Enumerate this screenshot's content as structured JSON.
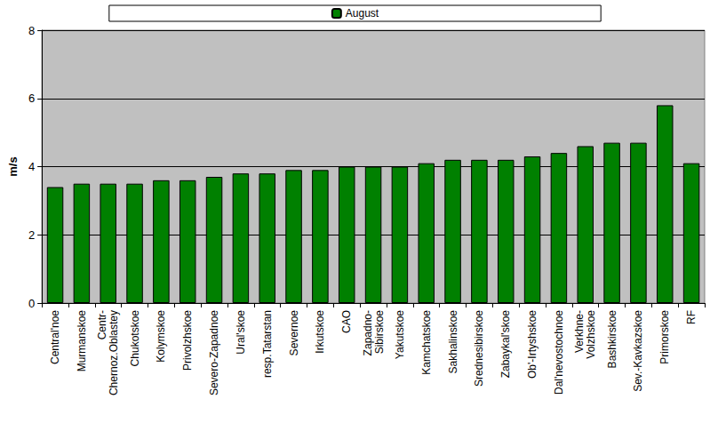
{
  "chart_data": {
    "type": "bar",
    "y_label": "m/s",
    "categories": [
      "Central'noe",
      "Murmanskoe",
      "Centr-\nChernoz.Oblastey",
      "Chukotskoe",
      "Kolymskoe",
      "Privolzhskoe",
      "Severo-Zapadnoe",
      "Ural'skoe",
      "resp.Tatarstan",
      "Severnoe",
      "Irkutskoe",
      "CAO",
      "Zapadno-\nSibirskoe",
      "Yakutskoe",
      "Kamchatskoe",
      "Sakhalinskoe",
      "Srednesibirskoe",
      "Zabaykal'skoe",
      "Ob'-Irtyshskoe",
      "Dal'nevostochnoe",
      "Verkhne-\nVolzhskoe",
      "Bashkirskoe",
      "Sev.-Kavkazskoe",
      "Primorskoe",
      "RF"
    ],
    "series": [
      {
        "name": "August",
        "color": "#008000",
        "values": [
          3.4,
          3.5,
          3.5,
          3.5,
          3.6,
          3.6,
          3.7,
          3.8,
          3.8,
          3.9,
          3.9,
          4.0,
          4.0,
          4.0,
          4.1,
          4.2,
          4.2,
          4.2,
          4.3,
          4.4,
          4.6,
          4.7,
          4.7,
          5.8,
          4.1
        ]
      }
    ],
    "ylim": [
      0,
      8
    ],
    "yticks": [
      0,
      2,
      4,
      6,
      8
    ],
    "grid": true,
    "legend": "top"
  }
}
